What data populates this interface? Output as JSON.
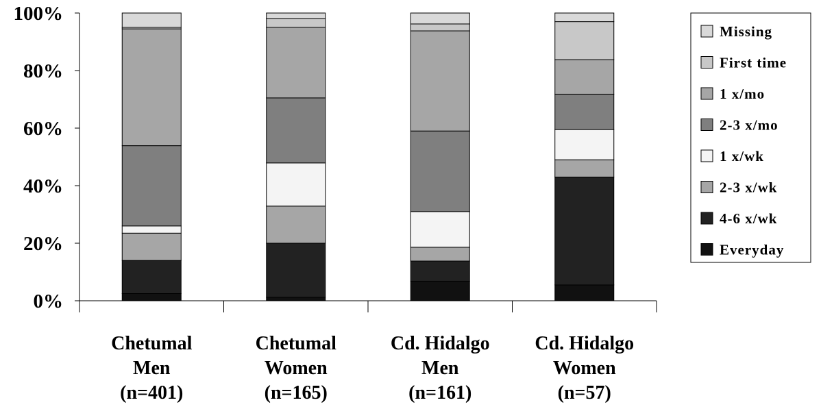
{
  "chart_data": {
    "type": "bar",
    "stacked": true,
    "percent": true,
    "categories": [
      [
        "Chetumal",
        "Men",
        "(n=401)"
      ],
      [
        "Chetumal",
        "Women",
        "(n=165)"
      ],
      [
        "Cd. Hidalgo",
        "Men",
        "(n=161)"
      ],
      [
        "Cd. Hidalgo",
        "Women",
        "(n=57)"
      ]
    ],
    "y_ticks": [
      "0%",
      "20%",
      "40%",
      "60%",
      "80%",
      "100%"
    ],
    "ylim": [
      0,
      100
    ],
    "legend_position": "right",
    "series": [
      {
        "name": "Everyday",
        "color": "#111111",
        "values": [
          2.5,
          1.2,
          6.8,
          5.5
        ]
      },
      {
        "name": "4-6 x/wk",
        "color": "#222222",
        "values": [
          11.5,
          18.8,
          7.0,
          37.5
        ]
      },
      {
        "name": "2-3 x/wk",
        "color": "#a6a6a6",
        "values": [
          9.5,
          12.9,
          4.8,
          6.0
        ]
      },
      {
        "name": "1 x/wk",
        "color": "#f4f4f4",
        "values": [
          2.5,
          15.0,
          12.4,
          10.5
        ]
      },
      {
        "name": "2-3 x/mo",
        "color": "#7f7f7f",
        "values": [
          27.9,
          22.6,
          28.0,
          12.3
        ]
      },
      {
        "name": "1 x/mo",
        "color": "#a6a6a6",
        "values": [
          40.6,
          24.5,
          34.8,
          12.0
        ]
      },
      {
        "name": "First time",
        "color": "#c8c8c8",
        "values": [
          0.5,
          3.0,
          2.4,
          13.2
        ]
      },
      {
        "name": "Missing",
        "color": "#d9d9d9",
        "values": [
          5.0,
          2.0,
          3.8,
          3.0
        ]
      }
    ]
  }
}
